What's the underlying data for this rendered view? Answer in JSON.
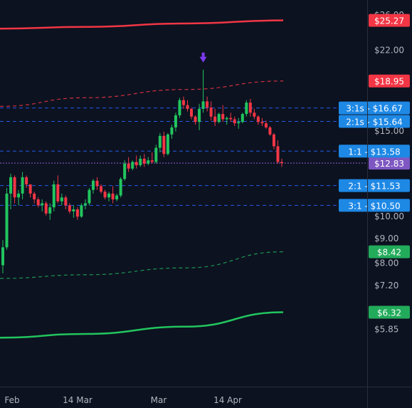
{
  "chart_data": {
    "type": "candlestick",
    "x_axis": {
      "ticks": [
        "Feb",
        "14 Mar",
        "Mar",
        "14 Apr"
      ]
    },
    "y_axis": {
      "scale": "log",
      "range": [
        5.6,
        26.0
      ],
      "ticks": [
        "$26.00",
        "$22.00",
        "$15.00",
        "$10.00",
        "$9.00",
        "$8.00",
        "$7.20",
        "$5.85"
      ],
      "tick_values": [
        26.0,
        22.0,
        15.0,
        10.0,
        9.0,
        8.0,
        7.2,
        5.85
      ]
    },
    "candles": [
      [
        7.9,
        8.9,
        7.6,
        8.6
      ],
      [
        8.6,
        11.4,
        8.5,
        11.1
      ],
      [
        11.1,
        12.2,
        10.3,
        12.0
      ],
      [
        12.0,
        12.1,
        10.6,
        10.9
      ],
      [
        10.9,
        11.3,
        10.5,
        11.1
      ],
      [
        11.1,
        12.3,
        10.8,
        12.0
      ],
      [
        12.0,
        12.1,
        11.4,
        11.6
      ],
      [
        11.6,
        11.6,
        10.9,
        11.1
      ],
      [
        11.1,
        11.2,
        10.6,
        10.8
      ],
      [
        10.8,
        10.9,
        10.4,
        10.5
      ],
      [
        10.5,
        10.8,
        10.2,
        10.6
      ],
      [
        10.6,
        10.7,
        10.0,
        10.1
      ],
      [
        10.1,
        10.6,
        9.8,
        10.4
      ],
      [
        10.4,
        11.8,
        10.2,
        11.6
      ],
      [
        11.6,
        12.1,
        10.6,
        10.7
      ],
      [
        10.7,
        11.1,
        10.5,
        10.9
      ],
      [
        10.9,
        11.0,
        10.3,
        10.5
      ],
      [
        10.5,
        10.6,
        10.1,
        10.2
      ],
      [
        10.2,
        10.5,
        9.9,
        10.3
      ],
      [
        10.3,
        10.4,
        9.8,
        9.95
      ],
      [
        9.95,
        10.6,
        9.9,
        10.5
      ],
      [
        10.5,
        10.8,
        10.3,
        10.6
      ],
      [
        10.6,
        11.4,
        10.5,
        11.3
      ],
      [
        11.3,
        11.9,
        11.1,
        11.8
      ],
      [
        11.8,
        12.0,
        11.3,
        11.5
      ],
      [
        11.5,
        11.6,
        11.1,
        11.2
      ],
      [
        11.2,
        11.3,
        10.8,
        10.9
      ],
      [
        10.9,
        11.2,
        10.7,
        11.1
      ],
      [
        11.1,
        11.5,
        10.6,
        10.8
      ],
      [
        10.8,
        11.1,
        10.7,
        11.0
      ],
      [
        11.0,
        12.0,
        10.9,
        11.9
      ],
      [
        11.9,
        13.0,
        11.8,
        12.8
      ],
      [
        12.8,
        13.2,
        12.3,
        12.5
      ],
      [
        12.5,
        13.0,
        12.4,
        12.9
      ],
      [
        12.9,
        13.3,
        12.5,
        12.7
      ],
      [
        12.7,
        13.3,
        12.6,
        13.1
      ],
      [
        13.1,
        13.4,
        12.6,
        12.8
      ],
      [
        12.8,
        13.2,
        12.7,
        13.0
      ],
      [
        13.0,
        13.5,
        12.8,
        12.9
      ],
      [
        12.9,
        14.0,
        12.8,
        13.8
      ],
      [
        13.8,
        14.8,
        13.5,
        14.6
      ],
      [
        14.6,
        14.9,
        13.2,
        13.4
      ],
      [
        13.4,
        14.8,
        13.3,
        14.7
      ],
      [
        14.7,
        15.4,
        14.4,
        15.2
      ],
      [
        15.2,
        16.3,
        14.9,
        16.1
      ],
      [
        16.1,
        17.5,
        15.9,
        17.3
      ],
      [
        17.3,
        17.6,
        16.6,
        16.9
      ],
      [
        16.9,
        17.3,
        16.4,
        16.6
      ],
      [
        16.6,
        16.7,
        15.8,
        16.0
      ],
      [
        16.0,
        16.1,
        15.4,
        15.6
      ],
      [
        15.6,
        17.0,
        15.0,
        16.6
      ],
      [
        16.6,
        20.0,
        16.3,
        17.2
      ],
      [
        17.2,
        17.6,
        16.4,
        16.7
      ],
      [
        16.7,
        17.2,
        15.7,
        16.0
      ],
      [
        16.0,
        16.6,
        15.3,
        15.6
      ],
      [
        15.6,
        16.3,
        15.5,
        16.2
      ],
      [
        16.2,
        16.9,
        15.6,
        15.8
      ],
      [
        15.8,
        16.0,
        15.4,
        15.9
      ],
      [
        15.9,
        16.3,
        15.6,
        15.8
      ],
      [
        15.8,
        16.0,
        15.3,
        15.5
      ],
      [
        15.5,
        15.9,
        15.1,
        15.6
      ],
      [
        15.6,
        16.3,
        15.5,
        16.2
      ],
      [
        16.2,
        17.3,
        16.0,
        17.1
      ],
      [
        17.1,
        17.4,
        16.0,
        16.3
      ],
      [
        16.3,
        16.6,
        15.8,
        16.0
      ],
      [
        16.0,
        16.1,
        15.4,
        15.6
      ],
      [
        15.6,
        15.9,
        15.3,
        15.5
      ],
      [
        15.5,
        15.7,
        15.1,
        15.2
      ],
      [
        15.2,
        15.3,
        14.6,
        14.7
      ],
      [
        14.7,
        14.8,
        13.7,
        13.9
      ],
      [
        13.9,
        14.3,
        12.8,
        12.9
      ],
      [
        12.9,
        13.1,
        12.6,
        12.83
      ]
    ],
    "bands": {
      "upper_solid": {
        "color": "#f23645",
        "values": [
          24.3,
          24.5,
          24.9,
          25.27
        ]
      },
      "upper_dashed": {
        "color": "#f23645",
        "values": [
          16.8,
          17.5,
          18.2,
          18.95
        ]
      },
      "lower_dashed": {
        "color": "#22ab5a",
        "values": [
          7.42,
          7.55,
          7.8,
          8.42
        ]
      },
      "lower_solid": {
        "color": "#22c55e",
        "values": [
          5.6,
          5.7,
          5.9,
          6.32
        ]
      }
    },
    "levels": [
      {
        "label": "3:1s - $16.67",
        "value": 16.67
      },
      {
        "label": "2:1s - $15.64",
        "value": 15.64
      },
      {
        "label": "1:1 - $13.58",
        "value": 13.58
      },
      {
        "label": "2:1 - $11.53",
        "value": 11.53
      },
      {
        "label": "3:1 - $10.50",
        "value": 10.5
      }
    ],
    "current_price": {
      "label": "$12.83",
      "value": 12.83,
      "color": "#7e57c2"
    },
    "price_labels": [
      {
        "label": "$25.27",
        "value": 25.27,
        "color": "#f23645"
      },
      {
        "label": "$18.95",
        "value": 18.95,
        "color": "#f23645"
      },
      {
        "label": "$8.42",
        "value": 8.42,
        "color": "#22ab5a"
      },
      {
        "label": "$6.32",
        "value": 6.32,
        "color": "#22ab5a"
      }
    ],
    "marker": {
      "type": "arrow-down",
      "color": "#7c3aed"
    },
    "colors": {
      "background": "#0c1220",
      "up": "#22c55e",
      "down": "#f23645",
      "level_line": "#2962ff",
      "level_label": "#1e88e5",
      "axis_text": "#b2b5be"
    }
  }
}
